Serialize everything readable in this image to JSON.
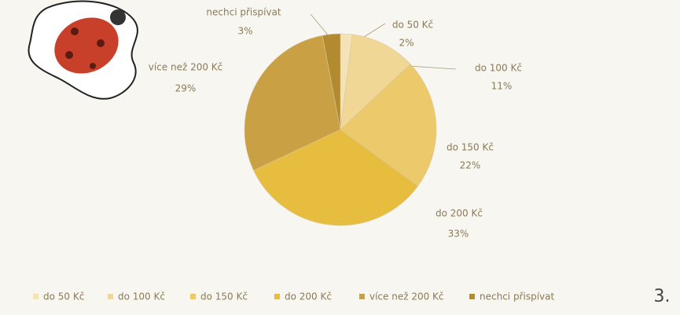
{
  "chart_data": {
    "type": "pie",
    "categories": [
      "do 50 Kč",
      "do 100 Kč",
      "do 150 Kč",
      "do 200 Kč",
      "více než 200 Kč",
      "nechci přispívat"
    ],
    "values": [
      2,
      11,
      22,
      33,
      29,
      3
    ],
    "value_labels": [
      "2%",
      "11%",
      "22%",
      "33%",
      "29%",
      "3%"
    ],
    "colors": [
      "#f4e3b6",
      "#f0d795",
      "#ecca6c",
      "#e7bd3f",
      "#c9a043",
      "#b38a30"
    ],
    "legend": "bottom"
  },
  "page_mark": "3."
}
